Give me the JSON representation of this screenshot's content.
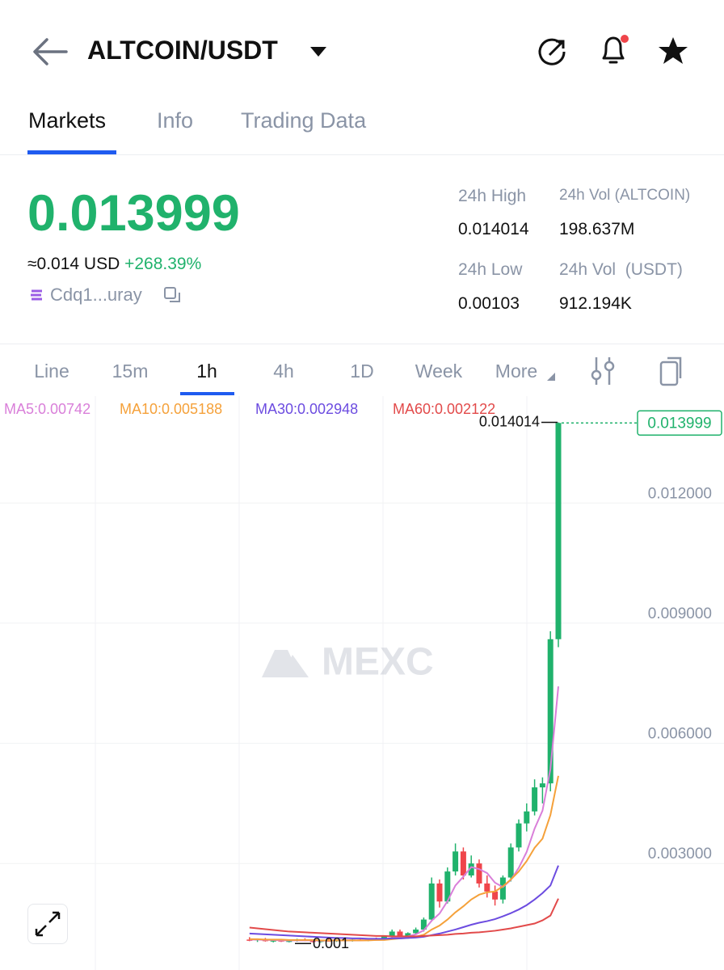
{
  "header": {
    "pair": "ALTCOIN/USDT"
  },
  "tabs": [
    "Markets",
    "Info",
    "Trading Data"
  ],
  "price": {
    "last": "0.013999",
    "usd": "≈0.014",
    "usd_unit": "USD",
    "change": "+268.39%",
    "contract": "Cdq1...uray"
  },
  "stats": [
    {
      "label": "24h High",
      "value": "0.014014"
    },
    {
      "label": "24h Vol (ALTCOIN)",
      "value": "198.637M"
    },
    {
      "label": "24h Low",
      "value": "0.00103"
    },
    {
      "label": "24h Vol  (USDT)",
      "value": "912.194K"
    }
  ],
  "intervals": [
    "Line",
    "15m",
    "1h",
    "4h",
    "1D",
    "Week",
    "More"
  ],
  "chart_data": {
    "type": "candlestick",
    "watermark": "MEXC",
    "ylim": [
      0.00034,
      0.01467
    ],
    "yticks": [
      {
        "value": 0.012,
        "label": "0.012000"
      },
      {
        "value": 0.009,
        "label": "0.009000"
      },
      {
        "value": 0.006,
        "label": "0.006000"
      },
      {
        "value": 0.003,
        "label": "0.003000"
      }
    ],
    "grid": true,
    "up_color": "#20b26c",
    "down_color": "#ef454a",
    "last_price": 0.013999,
    "high_marker": 0.014014,
    "low_marker": {
      "value": 0.001,
      "label": "0.001"
    },
    "candles": {
      "open": [
        0.0011,
        0.00108,
        0.00111,
        0.00106,
        0.00108,
        0.00105,
        0.00107,
        0.0011,
        0.00107,
        0.00104,
        0.00108,
        0.00106,
        0.00109,
        0.00107,
        0.0011,
        0.00108,
        0.00111,
        0.00109,
        0.00118,
        0.0013,
        0.00116,
        0.00126,
        0.00135,
        0.0016,
        0.0025,
        0.00205,
        0.0028,
        0.0033,
        0.0027,
        0.003,
        0.0025,
        0.0023,
        0.0021,
        0.00265,
        0.0034,
        0.004,
        0.0043,
        0.0049,
        0.005,
        0.0086
      ],
      "high": [
        0.00116,
        0.00112,
        0.00114,
        0.0011,
        0.00111,
        0.00108,
        0.00112,
        0.00113,
        0.0011,
        0.00109,
        0.00112,
        0.0011,
        0.00113,
        0.00111,
        0.00114,
        0.00112,
        0.00115,
        0.0012,
        0.00135,
        0.00135,
        0.00128,
        0.0014,
        0.00165,
        0.00265,
        0.0026,
        0.0029,
        0.0035,
        0.0034,
        0.0032,
        0.0031,
        0.0027,
        0.00245,
        0.0027,
        0.0035,
        0.0041,
        0.0045,
        0.0051,
        0.00515,
        0.0088,
        0.014014
      ],
      "low": [
        0.00106,
        0.00104,
        0.00105,
        0.00103,
        0.00104,
        0.00103,
        0.00105,
        0.00106,
        0.00103,
        0.00103,
        0.00105,
        0.00104,
        0.00106,
        0.00105,
        0.00107,
        0.00106,
        0.00108,
        0.00108,
        0.00115,
        0.00112,
        0.00114,
        0.00122,
        0.0013,
        0.00155,
        0.0019,
        0.002,
        0.0027,
        0.0026,
        0.00265,
        0.0024,
        0.00215,
        0.00195,
        0.002,
        0.00255,
        0.0033,
        0.0038,
        0.0042,
        0.0045,
        0.0048,
        0.0084
      ],
      "close": [
        0.00108,
        0.00111,
        0.00106,
        0.00108,
        0.00105,
        0.00107,
        0.0011,
        0.00107,
        0.00104,
        0.00108,
        0.00106,
        0.00109,
        0.00107,
        0.0011,
        0.00108,
        0.00111,
        0.00109,
        0.00118,
        0.0013,
        0.00116,
        0.00126,
        0.00135,
        0.0016,
        0.0025,
        0.00205,
        0.0028,
        0.0033,
        0.0027,
        0.003,
        0.0025,
        0.0023,
        0.0021,
        0.00265,
        0.0034,
        0.004,
        0.0043,
        0.0049,
        0.005,
        0.0086,
        0.013999
      ]
    },
    "series": [
      {
        "name": "MA5:0.00742",
        "color": "#d97fd9",
        "values": [
          0.0011,
          0.0011,
          0.00109,
          0.00109,
          0.00108,
          0.00108,
          0.00108,
          0.00108,
          0.00108,
          0.00107,
          0.00108,
          0.00108,
          0.00108,
          0.00108,
          0.00108,
          0.00109,
          0.00109,
          0.0011,
          0.00114,
          0.00116,
          0.00118,
          0.00123,
          0.00133,
          0.00157,
          0.00175,
          0.00206,
          0.00245,
          0.00267,
          0.00291,
          0.00286,
          0.00276,
          0.00252,
          0.00241,
          0.00259,
          0.00289,
          0.00329,
          0.00387,
          0.00432,
          0.00536,
          0.00742
        ]
      },
      {
        "name": "MA10:0.005188",
        "color": "#f5a13a",
        "values": [
          0.00111,
          0.00111,
          0.0011,
          0.0011,
          0.0011,
          0.00109,
          0.00109,
          0.00109,
          0.00109,
          0.00108,
          0.00108,
          0.00108,
          0.00108,
          0.00108,
          0.00108,
          0.00108,
          0.00109,
          0.00109,
          0.00111,
          0.00113,
          0.00114,
          0.00117,
          0.00122,
          0.00135,
          0.00145,
          0.0016,
          0.00178,
          0.00193,
          0.0021,
          0.00222,
          0.00228,
          0.0023,
          0.00243,
          0.0026,
          0.0028,
          0.00306,
          0.00339,
          0.00362,
          0.00421,
          0.005188
        ]
      },
      {
        "name": "MA30:0.002948",
        "color": "#6c4ce0",
        "values": [
          0.00125,
          0.00124,
          0.00123,
          0.00122,
          0.00121,
          0.0012,
          0.00119,
          0.00118,
          0.00117,
          0.00116,
          0.00115,
          0.00114,
          0.00114,
          0.00113,
          0.00113,
          0.00112,
          0.00112,
          0.00112,
          0.00113,
          0.00113,
          0.00114,
          0.00115,
          0.00117,
          0.00121,
          0.00125,
          0.0013,
          0.00135,
          0.00141,
          0.00147,
          0.00152,
          0.00156,
          0.00161,
          0.00168,
          0.00176,
          0.00185,
          0.00196,
          0.0021,
          0.00226,
          0.00245,
          0.002948
        ]
      },
      {
        "name": "MA60:0.002122",
        "color": "#e24a4a",
        "values": [
          0.0014,
          0.00138,
          0.00136,
          0.00134,
          0.00132,
          0.0013,
          0.00129,
          0.00128,
          0.00127,
          0.00126,
          0.00125,
          0.00124,
          0.00123,
          0.00122,
          0.00121,
          0.0012,
          0.00119,
          0.00119,
          0.00118,
          0.00118,
          0.00118,
          0.00118,
          0.00119,
          0.0012,
          0.00121,
          0.00122,
          0.00124,
          0.00125,
          0.00127,
          0.00128,
          0.0013,
          0.00132,
          0.00135,
          0.00138,
          0.00142,
          0.00146,
          0.0015,
          0.00158,
          0.0017,
          0.002122
        ]
      }
    ]
  }
}
